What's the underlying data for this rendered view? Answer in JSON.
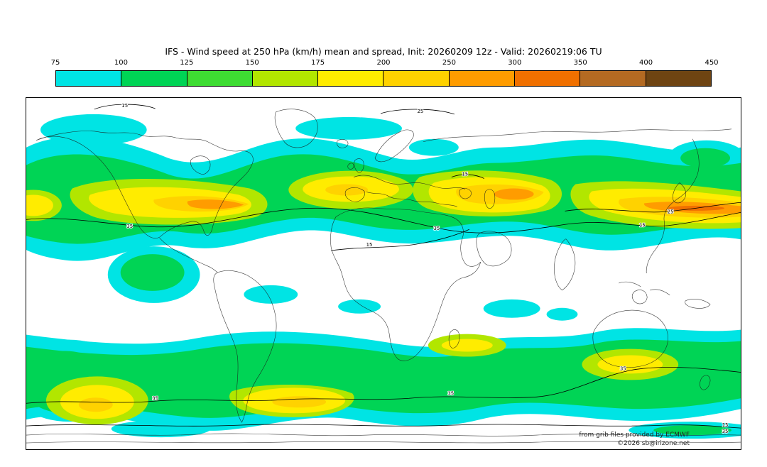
{
  "header": {
    "title": "IFS - Wind speed at 250 hPa (km/h) mean and spread, Init: 20260209 12z - Valid: 20260219:06 TU"
  },
  "colorbar": {
    "ticks": [
      "75",
      "100",
      "125",
      "150",
      "175",
      "200",
      "250",
      "300",
      "350",
      "400",
      "450"
    ],
    "colors": [
      "#00e4e4",
      "#00d455",
      "#3edc32",
      "#b2e600",
      "#ffec00",
      "#ffd200",
      "#ff9c00",
      "#f07000",
      "#b46a22",
      "#6e4412"
    ]
  },
  "map": {
    "palette": {
      "cyan": "#00e4e4",
      "green": "#00d455",
      "lime": "#b2e600",
      "yellow": "#ffec00",
      "gold": "#ffd200",
      "orange": "#ff9c00",
      "deeporange": "#f07000"
    },
    "contours": {
      "c15": "15",
      "c25": "25",
      "c35": "35"
    },
    "attribution": {
      "line1": "from grib files provided by ECMWF",
      "line2": "©2026 sb@irizone.net"
    }
  }
}
